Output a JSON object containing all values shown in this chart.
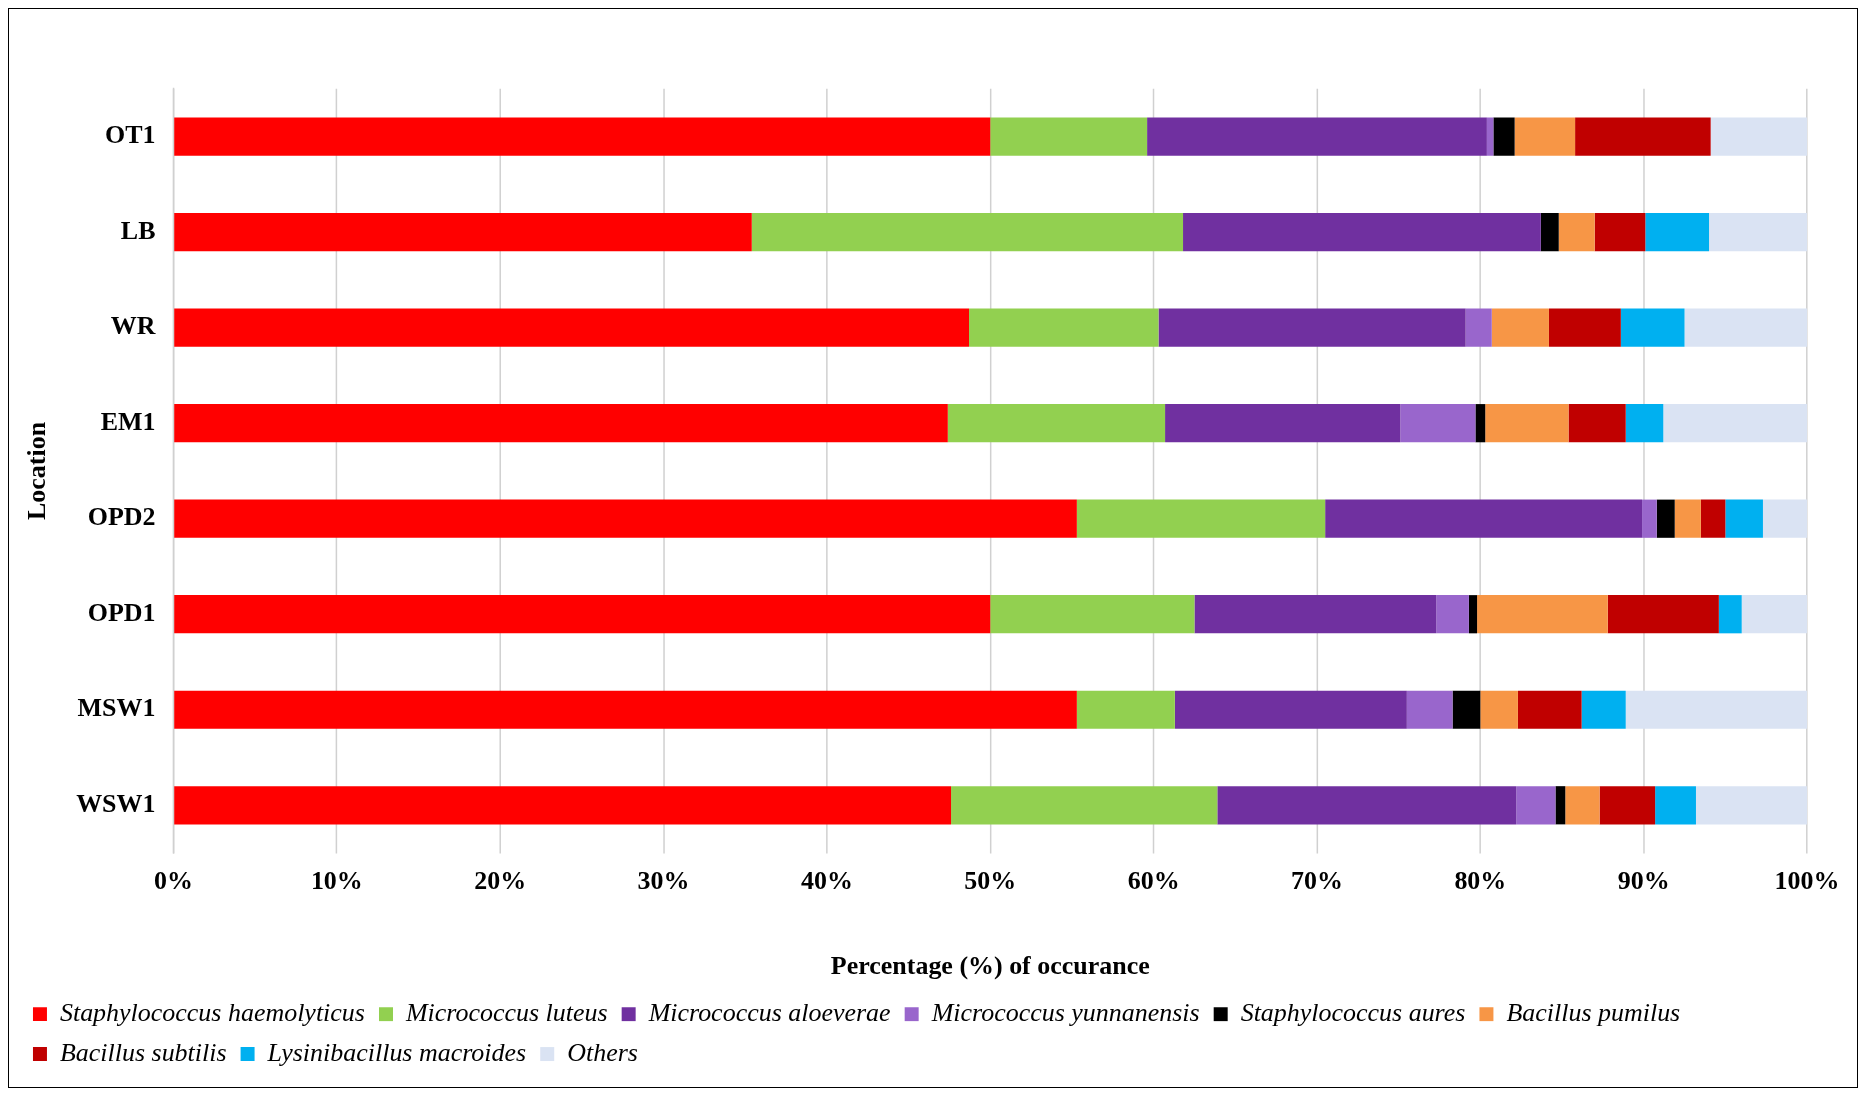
{
  "chart_data": {
    "type": "bar",
    "orientation": "horizontal",
    "stacked": true,
    "xlabel": "Percentage (%) of occurance",
    "ylabel": "Location",
    "categories": [
      "OT1",
      "LB",
      "WR",
      "EM1",
      "OPD2",
      "OPD1",
      "MSW1",
      "WSW1"
    ],
    "series": [
      {
        "name": "Staphylococcus haemolyticus",
        "color": "#ff0000",
        "values": [
          50.0,
          35.4,
          48.7,
          47.4,
          55.3,
          50.0,
          55.3,
          47.6
        ]
      },
      {
        "name": "Micrococcus luteus",
        "color": "#92d050",
        "values": [
          9.6,
          26.4,
          11.6,
          13.3,
          15.2,
          12.5,
          6.0,
          16.3
        ]
      },
      {
        "name": "Micrococcus aloeverae",
        "color": "#7030a0",
        "values": [
          20.8,
          21.9,
          18.8,
          14.4,
          19.4,
          14.8,
          14.2,
          18.3
        ]
      },
      {
        "name": "Micrococcus yunnanensis",
        "color": "#9966cc",
        "values": [
          0.4,
          0,
          1.6,
          4.6,
          0.9,
          2.0,
          2.8,
          2.4
        ]
      },
      {
        "name": "Staphylococcus aures",
        "color": "#000000",
        "values": [
          1.3,
          1.1,
          0,
          0.6,
          1.1,
          0.5,
          1.7,
          0.6
        ]
      },
      {
        "name": "Bacillus pumilus",
        "color": "#f79646",
        "values": [
          3.7,
          2.2,
          3.5,
          5.1,
          1.6,
          8.0,
          2.3,
          2.1
        ]
      },
      {
        "name": "Bacillus subtilis",
        "color": "#c00000",
        "values": [
          8.3,
          3.1,
          4.4,
          3.5,
          1.5,
          6.8,
          3.9,
          3.4
        ]
      },
      {
        "name": "Lysinibacillus macroides",
        "color": "#00b0f0",
        "values": [
          0,
          3.9,
          3.9,
          2.3,
          2.3,
          1.4,
          2.7,
          2.5
        ]
      },
      {
        "name": "Others",
        "color": "#dae3f3",
        "values": [
          5.9,
          6.0,
          7.5,
          8.8,
          2.7,
          4.0,
          11.1,
          6.8
        ]
      }
    ],
    "xlim": [
      0,
      100
    ],
    "xticks": [
      {
        "value": 0,
        "label": "0%"
      },
      {
        "value": 10,
        "label": "10%"
      },
      {
        "value": 20,
        "label": "20%"
      },
      {
        "value": 30,
        "label": "30%"
      },
      {
        "value": 40,
        "label": "40%"
      },
      {
        "value": 50,
        "label": "50%"
      },
      {
        "value": 60,
        "label": "60%"
      },
      {
        "value": 70,
        "label": "70%"
      },
      {
        "value": 80,
        "label": "80%"
      },
      {
        "value": 90,
        "label": "90%"
      },
      {
        "value": 100,
        "label": "100%"
      }
    ],
    "grid": "x",
    "legend": "bottom"
  }
}
